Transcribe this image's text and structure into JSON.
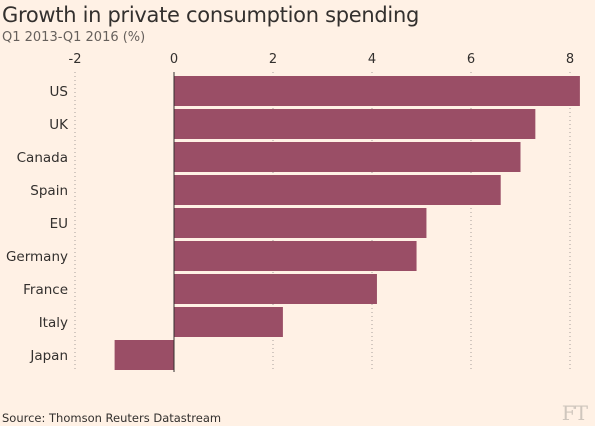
{
  "header": {
    "title": "Growth in private consumption spending",
    "subtitle": "Q1 2013-Q1 2016 (%)"
  },
  "footer": {
    "source": "Source: Thomson Reuters Datastream",
    "logo_text": "FT"
  },
  "colors": {
    "background": "#fff1e5",
    "bar": "#9a4e66",
    "grid": "#a7a09a",
    "axis": "#33302e"
  },
  "chart_data": {
    "type": "bar",
    "orientation": "horizontal",
    "title": "Growth in private consumption spending",
    "subtitle": "Q1 2013-Q1 2016 (%)",
    "categories": [
      "US",
      "UK",
      "Canada",
      "Spain",
      "EU",
      "Germany",
      "France",
      "Italy",
      "Japan"
    ],
    "values": [
      8.2,
      7.3,
      7.0,
      6.6,
      5.1,
      4.9,
      4.1,
      2.2,
      -1.2
    ],
    "xlim": [
      -2,
      8.2
    ],
    "xticks": [
      "-2",
      "0",
      "2",
      "4",
      "6",
      "8"
    ],
    "grid": "vertical dotted",
    "legend": "none"
  }
}
